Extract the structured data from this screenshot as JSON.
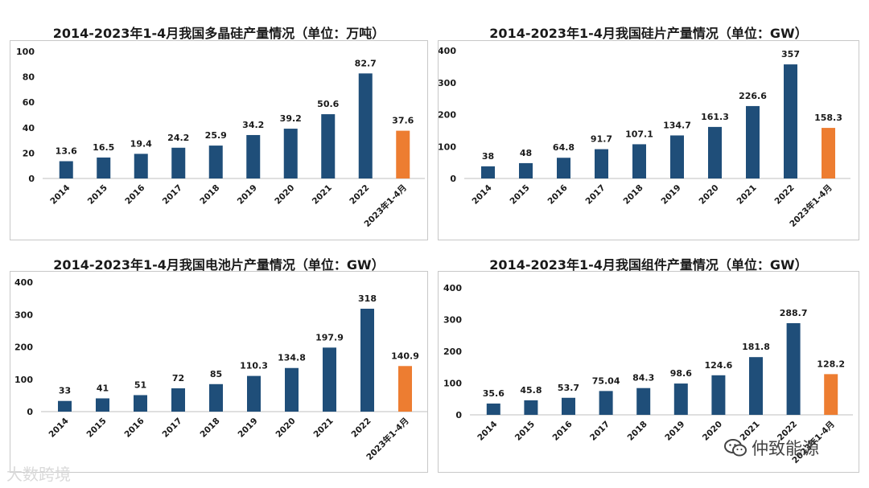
{
  "colors": {
    "bar": "#1f4e79",
    "highlight": "#ed7d31",
    "axis": "#bfbfbf",
    "text": "#1a1a1a"
  },
  "chart_data": [
    {
      "type": "bar",
      "title": "2014-2023年1-4月我国多晶硅产量情况（单位：万吨）",
      "categories": [
        "2014",
        "2015",
        "2016",
        "2017",
        "2018",
        "2019",
        "2020",
        "2021",
        "2022",
        "2023年1-4月"
      ],
      "values": [
        13.6,
        16.5,
        19.4,
        24.2,
        25.9,
        34.2,
        39.2,
        50.6,
        82.7,
        37.6
      ],
      "value_labels": [
        "13.6",
        "16.5",
        "19.4",
        "24.2",
        "25.9",
        "34.2",
        "39.2",
        "50.6",
        "82.7",
        "37.6"
      ],
      "yticks": [
        0,
        20,
        40,
        60,
        80,
        100
      ],
      "ylim": [
        0,
        100
      ],
      "highlight_index": 9,
      "grid": false
    },
    {
      "type": "bar",
      "title": "2014-2023年1-4月我国硅片产量情况（单位：GW）",
      "categories": [
        "2014",
        "2015",
        "2016",
        "2017",
        "2018",
        "2019",
        "2020",
        "2021",
        "2022",
        "2023年1-4月"
      ],
      "values": [
        38,
        48,
        64.8,
        91.7,
        107.1,
        134.7,
        161.3,
        226.6,
        357,
        158.3
      ],
      "value_labels": [
        "38",
        "48",
        "64.8",
        "91.7",
        "107.1",
        "134.7",
        "161.3",
        "226.6",
        "357",
        "158.3"
      ],
      "yticks": [
        0,
        100,
        200,
        300,
        400
      ],
      "ylim": [
        0,
        400
      ],
      "highlight_index": 9,
      "grid": false
    },
    {
      "type": "bar",
      "title": "2014-2023年1-4月我国电池片产量情况（单位：GW）",
      "categories": [
        "2014",
        "2015",
        "2016",
        "2017",
        "2018",
        "2019",
        "2020",
        "2021",
        "2022",
        "2023年1-4月"
      ],
      "values": [
        33,
        41,
        51,
        72,
        85,
        110.3,
        134.8,
        197.9,
        318,
        140.9
      ],
      "value_labels": [
        "33",
        "41",
        "51",
        "72",
        "85",
        "110.3",
        "134.8",
        "197.9",
        "318",
        "140.9"
      ],
      "yticks": [
        0,
        100,
        200,
        300,
        400
      ],
      "ylim": [
        0,
        400
      ],
      "highlight_index": 9,
      "grid": false
    },
    {
      "type": "bar",
      "title": "2014-2023年1-4月我国组件产量情况（单位：GW）",
      "categories": [
        "2014",
        "2015",
        "2016",
        "2017",
        "2018",
        "2019",
        "2020",
        "2021",
        "2022",
        "2023年1-4月"
      ],
      "values": [
        35.6,
        45.8,
        53.7,
        75.04,
        84.3,
        98.6,
        124.6,
        181.8,
        288.7,
        128.2
      ],
      "value_labels": [
        "35.6",
        "45.8",
        "53.7",
        "75.04",
        "84.3",
        "98.6",
        "124.6",
        "181.8",
        "288.7",
        "128.2"
      ],
      "yticks": [
        0,
        100,
        200,
        300,
        400
      ],
      "ylim": [
        0,
        400
      ],
      "highlight_index": 9,
      "grid": false
    }
  ],
  "watermarks": {
    "left": "大数跨境",
    "right": "仲致能源"
  }
}
